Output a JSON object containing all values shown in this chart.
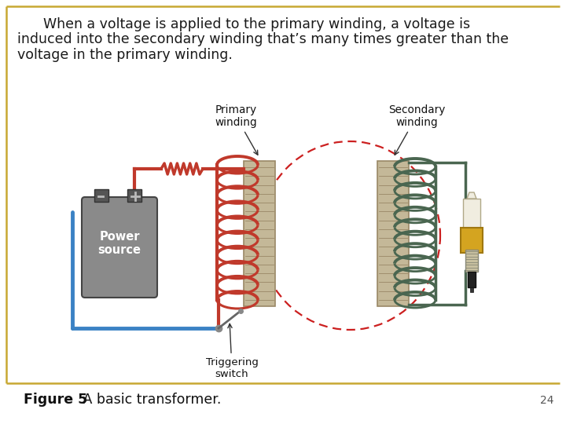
{
  "background_color": "#ffffff",
  "border_color": "#c8a832",
  "main_text_line1": "      When a voltage is applied to the primary winding, a voltage is",
  "main_text_line2": "induced into the secondary winding that’s many times greater than the",
  "main_text_line3": "voltage in the primary winding.",
  "figure_label_bold": "Figure 5",
  "figure_label_normal": " A basic transformer.",
  "page_number": "24",
  "text_fontsize": 12.5,
  "caption_fontsize": 12.5,
  "page_num_fontsize": 10,
  "fig_width": 7.2,
  "fig_height": 5.4,
  "dpi": 100
}
